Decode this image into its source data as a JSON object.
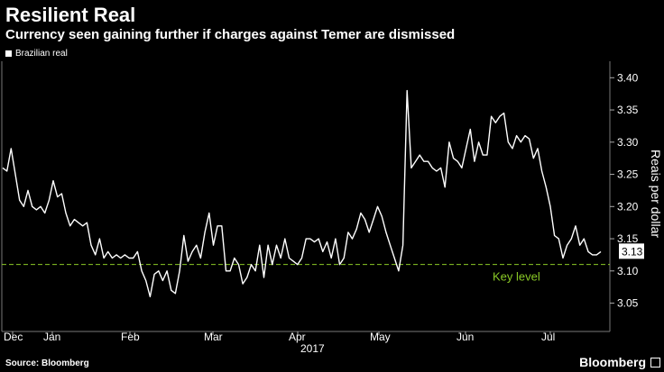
{
  "header": {
    "title": "Resilient Real",
    "subtitle": "Currency seen gaining further if charges against Temer are dismissed"
  },
  "legend": {
    "label": "Brazilian real"
  },
  "footer": {
    "source": "Source: Bloomberg",
    "brand": "Bloomberg"
  },
  "colors": {
    "background": "#000000",
    "line": "#ffffff",
    "key_level": "#8ac926"
  },
  "chart_data": {
    "type": "line",
    "ylabel": "Reais per dollar",
    "ylim": [
      3.02,
      3.42
    ],
    "yticks": [
      "3.05",
      "3.10",
      "3.15",
      "3.20",
      "3.25",
      "3.30",
      "3.35",
      "3.40"
    ],
    "month_labels": [
      "Dec",
      "Jan",
      "Feb",
      "Mar",
      "Apr",
      "May",
      "Jun",
      "Jul"
    ],
    "year_label": "2017",
    "last_value_label": "3.13",
    "key_level": {
      "value": 3.11,
      "label": "Key level"
    },
    "grid": false,
    "series": [
      {
        "values": [
          3.26,
          3.255,
          3.29,
          3.25,
          3.21,
          3.2,
          3.225,
          3.2,
          3.195,
          3.2,
          3.19,
          3.21,
          3.24,
          3.215,
          3.22,
          3.19,
          3.17,
          3.18,
          3.175,
          3.17,
          3.175,
          3.14,
          3.125,
          3.15,
          3.12,
          3.13,
          3.12,
          3.125,
          3.12,
          3.125,
          3.12,
          3.12,
          3.13,
          3.1,
          3.085,
          3.06,
          3.095,
          3.1,
          3.085,
          3.1,
          3.07,
          3.065,
          3.1,
          3.155,
          3.115,
          3.13,
          3.14,
          3.12,
          3.16,
          3.19,
          3.14,
          3.17,
          3.17,
          3.1,
          3.1,
          3.12,
          3.11,
          3.08,
          3.09,
          3.11,
          3.1,
          3.14,
          3.09,
          3.14,
          3.11,
          3.14,
          3.12,
          3.15,
          3.12,
          3.115,
          3.11,
          3.12,
          3.15,
          3.15,
          3.145,
          3.15,
          3.13,
          3.145,
          3.12,
          3.15,
          3.11,
          3.12,
          3.16,
          3.15,
          3.165,
          3.19,
          3.18,
          3.16,
          3.18,
          3.2,
          3.185,
          3.16,
          3.14,
          3.12,
          3.1,
          3.14,
          3.38,
          3.26,
          3.27,
          3.28,
          3.27,
          3.27,
          3.26,
          3.255,
          3.26,
          3.23,
          3.3,
          3.275,
          3.27,
          3.26,
          3.29,
          3.32,
          3.27,
          3.3,
          3.28,
          3.28,
          3.34,
          3.33,
          3.34,
          3.345,
          3.3,
          3.29,
          3.31,
          3.3,
          3.31,
          3.305,
          3.275,
          3.29,
          3.255,
          3.23,
          3.2,
          3.155,
          3.15,
          3.12,
          3.14,
          3.15,
          3.17,
          3.14,
          3.15,
          3.13,
          3.125,
          3.125,
          3.13
        ]
      }
    ]
  }
}
